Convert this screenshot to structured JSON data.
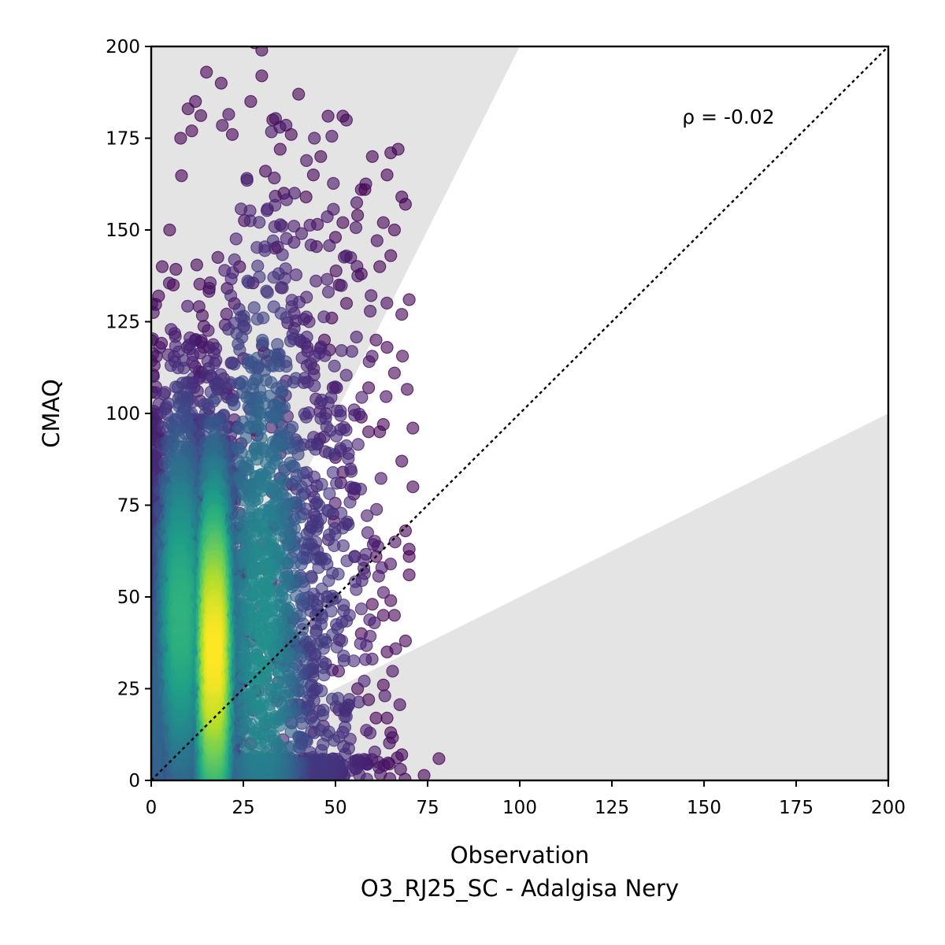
{
  "chart_data": {
    "type": "scatter",
    "xlabel": "Observation",
    "xlabel_sub": "O3_RJ25_SC - Adalgisa Nery",
    "ylabel": "CMAQ",
    "xlim": [
      0,
      200
    ],
    "ylim": [
      0,
      200
    ],
    "xticks": [
      0,
      25,
      50,
      75,
      100,
      125,
      150,
      175,
      200
    ],
    "yticks": [
      0,
      25,
      50,
      75,
      100,
      125,
      150,
      175,
      200
    ],
    "annotation": "ρ = -0.02",
    "grid": false,
    "reference_line": {
      "slope": 1,
      "style": "dotted",
      "color": "#000000"
    },
    "factor_of_two_band": {
      "upper_slope": 2,
      "lower_slope": 0.5,
      "color": "#e4e4e4"
    },
    "colormap": "viridis",
    "colors": {
      "low_density": "#440154",
      "mid_density": "#21918c",
      "high_density": "#fde725",
      "band": "#e4e4e4"
    },
    "density_clusters": [
      {
        "x_center": 17,
        "x_spread": 3,
        "y_range": [
          0,
          160
        ],
        "peak_y": 35,
        "peak_spread": 30,
        "weight": 2800
      },
      {
        "x_center": 8,
        "x_spread": 4,
        "y_range": [
          0,
          140
        ],
        "peak_y": 45,
        "peak_spread": 30,
        "weight": 1800
      },
      {
        "x_center": 1,
        "x_spread": 1.5,
        "y_range": [
          0,
          130
        ],
        "peak_y": 15,
        "peak_spread": 40,
        "weight": 900
      },
      {
        "x_center": 30,
        "x_spread": 8,
        "y_range": [
          0,
          190
        ],
        "peak_y": 40,
        "peak_spread": 50,
        "weight": 1400
      },
      {
        "x_center": 45,
        "x_spread": 10,
        "y_range": [
          0,
          180
        ],
        "peak_y": 40,
        "peak_spread": 60,
        "weight": 500
      }
    ],
    "outlier_points": [
      [
        28,
        201
      ],
      [
        30,
        199
      ],
      [
        15,
        193
      ],
      [
        19,
        190
      ],
      [
        30,
        192
      ],
      [
        40,
        187
      ],
      [
        10,
        183
      ],
      [
        12,
        185
      ],
      [
        27,
        185
      ],
      [
        33,
        180
      ],
      [
        48,
        181
      ],
      [
        52,
        181
      ],
      [
        8,
        175
      ],
      [
        11,
        177
      ],
      [
        22,
        176
      ],
      [
        35,
        172
      ],
      [
        60,
        170
      ],
      [
        65,
        171
      ],
      [
        67,
        172
      ],
      [
        64,
        165
      ],
      [
        57,
        161
      ],
      [
        58,
        161
      ],
      [
        68,
        159
      ],
      [
        69,
        157
      ],
      [
        63,
        152
      ],
      [
        66,
        150
      ],
      [
        56,
        154
      ],
      [
        65,
        143
      ],
      [
        62,
        140
      ],
      [
        57,
        138
      ],
      [
        70,
        131
      ],
      [
        68,
        127
      ],
      [
        61,
        120
      ],
      [
        64,
        118
      ],
      [
        59,
        107
      ],
      [
        57,
        99
      ],
      [
        59,
        95
      ],
      [
        63,
        97
      ],
      [
        66,
        111
      ],
      [
        71,
        96
      ],
      [
        62,
        95
      ],
      [
        68,
        87
      ],
      [
        71,
        80
      ],
      [
        55,
        78
      ],
      [
        69,
        68
      ],
      [
        61,
        61
      ],
      [
        70,
        63
      ],
      [
        70,
        61
      ],
      [
        70,
        56
      ],
      [
        65,
        49
      ],
      [
        60,
        48
      ],
      [
        63,
        45
      ],
      [
        66,
        45
      ],
      [
        69,
        38
      ],
      [
        57,
        40
      ],
      [
        64,
        35
      ],
      [
        63,
        26
      ],
      [
        61,
        17
      ],
      [
        64,
        17
      ],
      [
        65,
        13
      ],
      [
        68,
        7
      ],
      [
        59,
        22
      ],
      [
        56,
        25
      ],
      [
        50,
        88
      ],
      [
        52,
        84
      ],
      [
        46,
        170
      ],
      [
        44,
        165
      ],
      [
        38,
        176
      ],
      [
        42,
        159
      ],
      [
        50,
        148
      ],
      [
        52,
        152
      ],
      [
        49,
        126
      ],
      [
        51,
        135
      ],
      [
        53,
        130
      ],
      [
        47,
        120
      ],
      [
        36,
        160
      ],
      [
        31,
        166
      ],
      [
        24,
        140
      ],
      [
        5,
        150
      ],
      [
        3,
        140
      ],
      [
        6,
        135
      ],
      [
        2,
        132
      ],
      [
        0,
        100
      ],
      [
        0,
        93
      ],
      [
        0,
        88
      ],
      [
        0,
        80
      ],
      [
        0,
        75
      ],
      [
        1,
        60
      ],
      [
        1,
        55
      ],
      [
        0,
        50
      ]
    ]
  }
}
